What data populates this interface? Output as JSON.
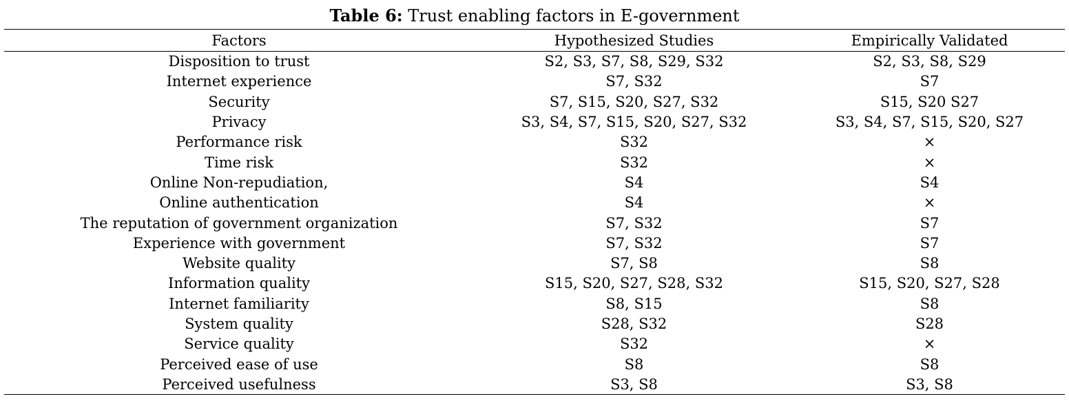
{
  "caption": {
    "label": "Table 6:",
    "text": " Trust enabling factors in E-government"
  },
  "table": {
    "headers": [
      "Factors",
      "Hypothesized Studies",
      "Empirically Validated"
    ],
    "rows": [
      [
        "Disposition to trust",
        "S2, S3, S7, S8, S29, S32",
        "S2, S3, S8, S29"
      ],
      [
        "Internet experience",
        "S7, S32",
        "S7"
      ],
      [
        "Security",
        "S7, S15, S20, S27, S32",
        "S15, S20 S27"
      ],
      [
        "Privacy",
        "S3, S4, S7, S15, S20, S27, S32",
        "S3, S4, S7, S15, S20, S27"
      ],
      [
        "Performance risk",
        "S32",
        "×"
      ],
      [
        "Time risk",
        "S32",
        "×"
      ],
      [
        "Online Non-repudiation,",
        "S4",
        "S4"
      ],
      [
        "Online authentication",
        "S4",
        "×"
      ],
      [
        "The reputation of government organization",
        "S7, S32",
        "S7"
      ],
      [
        "Experience with government",
        "S7, S32",
        "S7"
      ],
      [
        "Website quality",
        "S7, S8",
        "S8"
      ],
      [
        "Information quality",
        "S15, S20, S27, S28, S32",
        "S15, S20, S27, S28"
      ],
      [
        "Internet familiarity",
        "S8, S15",
        "S8"
      ],
      [
        "System quality",
        "S28, S32",
        "S28"
      ],
      [
        "Service quality",
        "S32",
        "×"
      ],
      [
        "Perceived ease of use",
        "S8",
        "S8"
      ],
      [
        "Perceived usefulness",
        "S3, S8",
        "S3, S8"
      ]
    ]
  }
}
